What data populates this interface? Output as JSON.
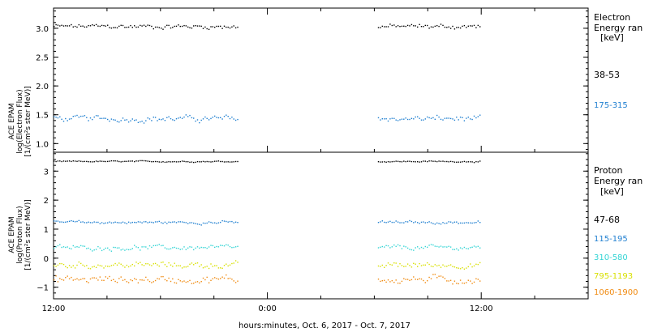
{
  "chart_data": [
    {
      "type": "scatter",
      "ylabel_lines": [
        "ACE EPAM",
        "log(Electron Flux)",
        "[1/(cm²s ster MeV)]"
      ],
      "yticks": [
        "1.0",
        "1.5",
        "2.0",
        "2.5",
        "3.0"
      ],
      "ylim": [
        0.85,
        3.35
      ],
      "legend_title": [
        "Electron",
        "Energy ran",
        "[keV]"
      ],
      "x_range_hours": [
        0,
        30
      ],
      "gap_hours": [
        10.3,
        18.3
      ],
      "series": [
        {
          "name": "38-53",
          "color": "#000000",
          "mean": 3.04,
          "noise": 0.04,
          "points": 150
        },
        {
          "name": "175-315",
          "color": "#1f7fd0",
          "mean": 1.44,
          "noise": 0.05,
          "points": 150
        }
      ]
    },
    {
      "type": "scatter",
      "ylabel_lines": [
        "ACE EPAM",
        "log(Proton Flux)",
        "[1/(cm²s ster MeV)]"
      ],
      "yticks": [
        "−1",
        "0",
        "1",
        "2",
        "3"
      ],
      "ylim": [
        -1.4,
        3.65
      ],
      "legend_title": [
        "Proton",
        "Energy ran",
        "[keV]"
      ],
      "x_range_hours": [
        0,
        30
      ],
      "gap_hours": [
        10.3,
        18.3
      ],
      "series": [
        {
          "name": "47-68",
          "color": "#000000",
          "mean": 3.35,
          "noise": 0.02,
          "points": 150
        },
        {
          "name": "115-195",
          "color": "#1f7fd0",
          "mean": 1.25,
          "noise": 0.05,
          "points": 150
        },
        {
          "name": "310-580",
          "color": "#33d4d4",
          "mean": 0.38,
          "noise": 0.08,
          "points": 150
        },
        {
          "name": "795-1193",
          "color": "#d8e000",
          "mean": -0.22,
          "noise": 0.1,
          "points": 150
        },
        {
          "name": "1060-1900",
          "color": "#f08a10",
          "mean": -0.72,
          "noise": 0.13,
          "points": 150
        }
      ]
    }
  ],
  "xaxis": {
    "tick_labels": [
      "12:00",
      "0:00",
      "12:00"
    ],
    "tick_hours": [
      0,
      12,
      24
    ],
    "title": "hours:minutes, Oct.  6, 2017 - Oct.  7, 2017"
  }
}
